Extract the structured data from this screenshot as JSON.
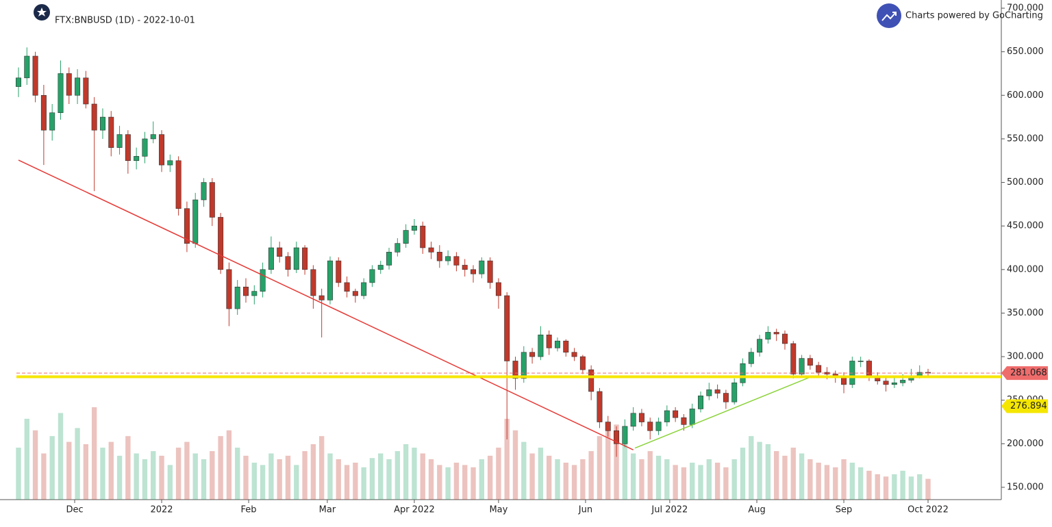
{
  "chart_data": {
    "type": "candlestick",
    "title": "FTX:BNBUSD (1D) - 2022-10-01",
    "branding": "Charts powered by GoCharting",
    "up_color": "#26a269",
    "down_color": "#c0392b",
    "ylim": [
      150,
      700
    ],
    "yticks": [
      {
        "value": 150,
        "label": "150.000"
      },
      {
        "value": 200,
        "label": "200.000"
      },
      {
        "value": 250,
        "label": "250.000"
      },
      {
        "value": 300,
        "label": "300.000"
      },
      {
        "value": 350,
        "label": "350.000"
      },
      {
        "value": 400,
        "label": "400.000"
      },
      {
        "value": 450,
        "label": "450.000"
      },
      {
        "value": 500,
        "label": "500.000"
      },
      {
        "value": 550,
        "label": "550.000"
      },
      {
        "value": 600,
        "label": "600.000"
      },
      {
        "value": 650,
        "label": "650.000"
      },
      {
        "value": 700,
        "label": "700.000"
      }
    ],
    "xlim": [
      -0.3,
      116.7
    ],
    "xticks": [
      {
        "value": 6.67,
        "label": "Dec"
      },
      {
        "value": 17,
        "label": "2022"
      },
      {
        "value": 27.33,
        "label": "Feb"
      },
      {
        "value": 36.67,
        "label": "Mar"
      },
      {
        "value": 47,
        "label": "Apr 2022"
      },
      {
        "value": 57,
        "label": "May"
      },
      {
        "value": 67.33,
        "label": "Jun"
      },
      {
        "value": 77.33,
        "label": "Jul 2022"
      },
      {
        "value": 87.67,
        "label": "Aug"
      },
      {
        "value": 98,
        "label": "Sep"
      },
      {
        "value": 108,
        "label": "Oct 2022"
      }
    ],
    "candles": [
      [
        610,
        632,
        598,
        620
      ],
      [
        620,
        655,
        612,
        645
      ],
      [
        645,
        650,
        592,
        600
      ],
      [
        600,
        612,
        520,
        560
      ],
      [
        560,
        590,
        548,
        580
      ],
      [
        580,
        640,
        572,
        625
      ],
      [
        625,
        632,
        590,
        600
      ],
      [
        600,
        630,
        590,
        620
      ],
      [
        620,
        628,
        585,
        590
      ],
      [
        590,
        598,
        490,
        560
      ],
      [
        560,
        585,
        550,
        575
      ],
      [
        575,
        582,
        530,
        540
      ],
      [
        540,
        565,
        532,
        555
      ],
      [
        555,
        560,
        510,
        525
      ],
      [
        525,
        540,
        515,
        530
      ],
      [
        530,
        558,
        522,
        550
      ],
      [
        550,
        570,
        545,
        555
      ],
      [
        555,
        560,
        512,
        520
      ],
      [
        520,
        532,
        512,
        525
      ],
      [
        525,
        530,
        462,
        470
      ],
      [
        470,
        478,
        420,
        430
      ],
      [
        430,
        488,
        425,
        480
      ],
      [
        480,
        505,
        472,
        500
      ],
      [
        500,
        505,
        450,
        460
      ],
      [
        460,
        465,
        395,
        400
      ],
      [
        400,
        408,
        335,
        355
      ],
      [
        355,
        388,
        348,
        380
      ],
      [
        380,
        390,
        362,
        370
      ],
      [
        370,
        382,
        360,
        375
      ],
      [
        375,
        408,
        368,
        400
      ],
      [
        400,
        438,
        395,
        425
      ],
      [
        425,
        432,
        408,
        415
      ],
      [
        415,
        420,
        392,
        400
      ],
      [
        400,
        432,
        396,
        425
      ],
      [
        425,
        428,
        394,
        400
      ],
      [
        400,
        405,
        355,
        370
      ],
      [
        370,
        378,
        322,
        365
      ],
      [
        365,
        415,
        360,
        410
      ],
      [
        410,
        414,
        380,
        385
      ],
      [
        385,
        392,
        368,
        375
      ],
      [
        375,
        378,
        362,
        370
      ],
      [
        370,
        390,
        366,
        385
      ],
      [
        385,
        405,
        380,
        400
      ],
      [
        400,
        410,
        395,
        405
      ],
      [
        405,
        425,
        400,
        420
      ],
      [
        420,
        436,
        415,
        430
      ],
      [
        430,
        452,
        425,
        445
      ],
      [
        445,
        458,
        440,
        450
      ],
      [
        450,
        455,
        418,
        425
      ],
      [
        425,
        432,
        412,
        420
      ],
      [
        420,
        428,
        402,
        410
      ],
      [
        410,
        422,
        405,
        415
      ],
      [
        415,
        420,
        398,
        405
      ],
      [
        405,
        412,
        392,
        400
      ],
      [
        400,
        405,
        385,
        395
      ],
      [
        395,
        414,
        390,
        410
      ],
      [
        410,
        414,
        378,
        385
      ],
      [
        385,
        390,
        355,
        370
      ],
      [
        370,
        374,
        205,
        295
      ],
      [
        295,
        300,
        262,
        275
      ],
      [
        275,
        312,
        270,
        305
      ],
      [
        305,
        310,
        292,
        300
      ],
      [
        300,
        335,
        296,
        325
      ],
      [
        325,
        330,
        302,
        310
      ],
      [
        310,
        322,
        306,
        318
      ],
      [
        318,
        320,
        300,
        305
      ],
      [
        305,
        310,
        295,
        300
      ],
      [
        300,
        302,
        280,
        285
      ],
      [
        285,
        290,
        250,
        260
      ],
      [
        260,
        264,
        218,
        225
      ],
      [
        225,
        232,
        208,
        215
      ],
      [
        215,
        220,
        185,
        200
      ],
      [
        200,
        228,
        196,
        220
      ],
      [
        220,
        242,
        215,
        235
      ],
      [
        235,
        240,
        220,
        225
      ],
      [
        225,
        230,
        205,
        215
      ],
      [
        215,
        230,
        210,
        225
      ],
      [
        225,
        244,
        220,
        238
      ],
      [
        238,
        242,
        225,
        230
      ],
      [
        230,
        234,
        215,
        222
      ],
      [
        222,
        246,
        218,
        240
      ],
      [
        240,
        260,
        236,
        255
      ],
      [
        255,
        270,
        250,
        262
      ],
      [
        262,
        268,
        252,
        258
      ],
      [
        258,
        262,
        240,
        248
      ],
      [
        248,
        275,
        245,
        270
      ],
      [
        270,
        298,
        266,
        292
      ],
      [
        292,
        310,
        288,
        305
      ],
      [
        305,
        325,
        300,
        320
      ],
      [
        320,
        335,
        315,
        328
      ],
      [
        328,
        332,
        318,
        326
      ],
      [
        326,
        330,
        308,
        315
      ],
      [
        315,
        318,
        275,
        280
      ],
      [
        280,
        302,
        276,
        298
      ],
      [
        298,
        302,
        285,
        290
      ],
      [
        290,
        294,
        276,
        282
      ],
      [
        282,
        288,
        274,
        280
      ],
      [
        280,
        284,
        270,
        278
      ],
      [
        278,
        282,
        258,
        268
      ],
      [
        268,
        300,
        264,
        295
      ],
      [
        295,
        300,
        288,
        295
      ],
      [
        295,
        297,
        272,
        278
      ],
      [
        278,
        282,
        268,
        272
      ],
      [
        272,
        276,
        260,
        268
      ],
      [
        268,
        276,
        264,
        270
      ],
      [
        270,
        280,
        266,
        273
      ],
      [
        273,
        286,
        270,
        278
      ],
      [
        278,
        290,
        275,
        282
      ],
      [
        282,
        286,
        278,
        281.068
      ]
    ],
    "volumes": [
      45,
      70,
      60,
      40,
      55,
      75,
      50,
      62,
      48,
      80,
      45,
      50,
      38,
      55,
      40,
      35,
      42,
      38,
      30,
      45,
      50,
      40,
      35,
      42,
      55,
      60,
      45,
      38,
      32,
      30,
      40,
      35,
      38,
      30,
      42,
      48,
      55,
      40,
      35,
      30,
      32,
      28,
      36,
      40,
      35,
      42,
      48,
      45,
      40,
      35,
      30,
      28,
      32,
      30,
      28,
      35,
      38,
      45,
      70,
      60,
      50,
      40,
      45,
      38,
      35,
      32,
      30,
      35,
      42,
      55,
      60,
      65,
      50,
      40,
      35,
      42,
      38,
      35,
      30,
      28,
      32,
      30,
      35,
      32,
      28,
      35,
      45,
      55,
      50,
      48,
      42,
      38,
      45,
      40,
      35,
      32,
      30,
      28,
      35,
      32,
      28,
      25,
      22,
      20,
      22,
      25,
      20,
      22,
      18
    ],
    "level_value": 276.894,
    "level_label": "276.894",
    "level_color": "#f5e600",
    "last_value": 281.068,
    "last_label": "281.068",
    "last_color": "#ef6c6c",
    "trendlines": [
      {
        "color": "#e53935",
        "points": [
          [
            0,
            525.6
          ],
          [
            73,
            193
          ]
        ]
      },
      {
        "color": "#8bd33a",
        "points": [
          [
            73.2,
            195
          ],
          [
            94.4,
            278
          ]
        ]
      }
    ]
  }
}
